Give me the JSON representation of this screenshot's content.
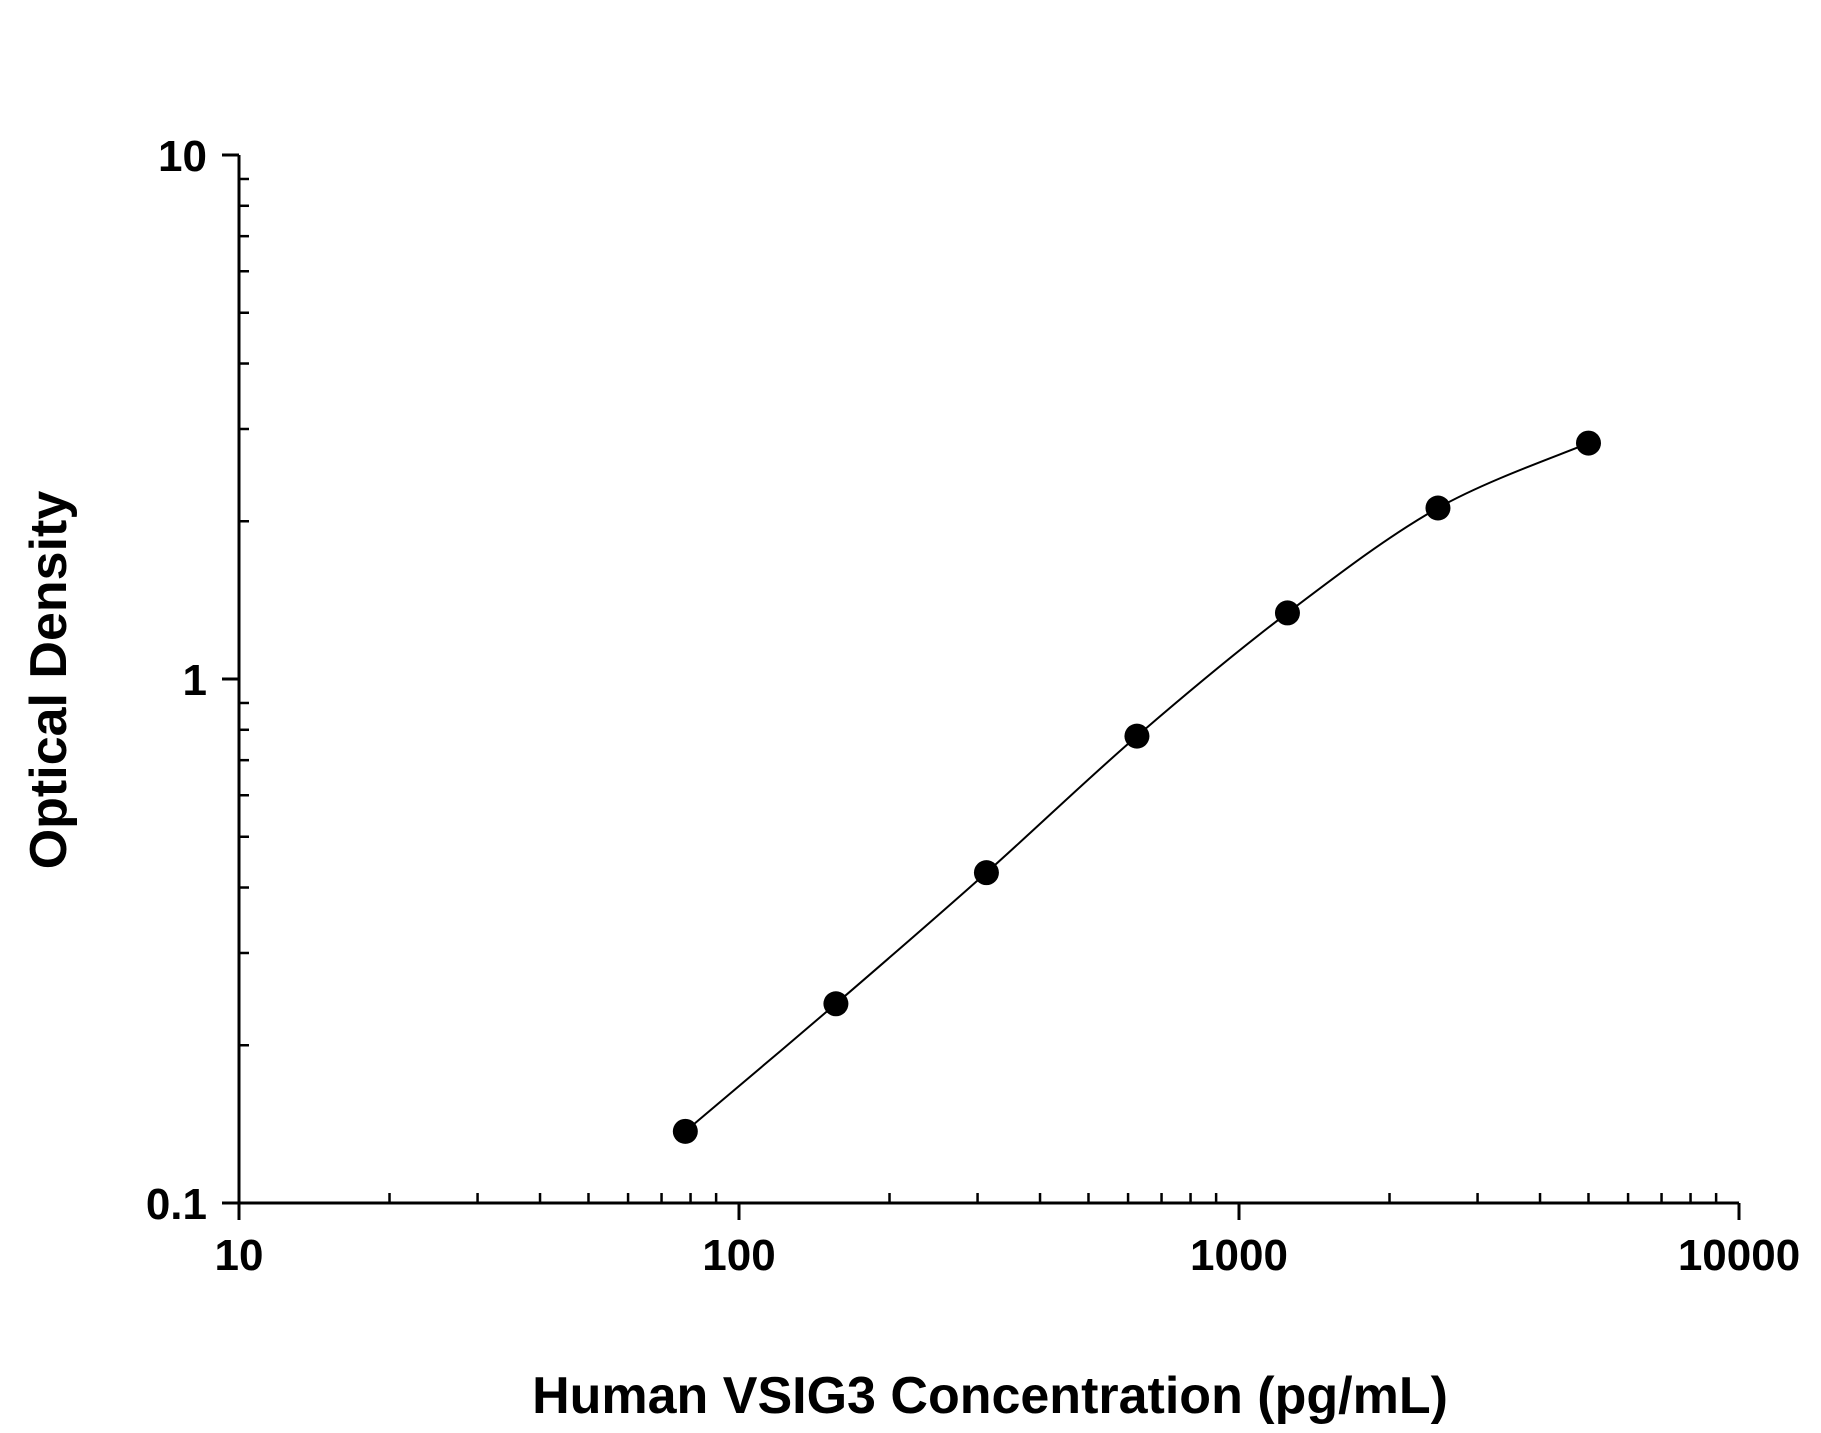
{
  "chart_data": {
    "type": "scatter",
    "title": "",
    "xlabel": "Human VSIG3 Concentration (pg/mL)",
    "ylabel": "Optical Density",
    "xscale": "log",
    "yscale": "log",
    "xlim": [
      10,
      10000
    ],
    "ylim": [
      0.1,
      10
    ],
    "xticks": [
      "10",
      "100",
      "1000",
      "10000"
    ],
    "yticks": [
      "0.1",
      "1",
      "10"
    ],
    "grid": false,
    "legend": "none",
    "series": [
      {
        "x": [
          78.1,
          156.25,
          312.5,
          625,
          1250,
          2500,
          5000
        ],
        "y": [
          0.137,
          0.24,
          0.427,
          0.778,
          1.337,
          2.12,
          2.82
        ],
        "fit_line": true,
        "color": "#000000"
      }
    ]
  }
}
